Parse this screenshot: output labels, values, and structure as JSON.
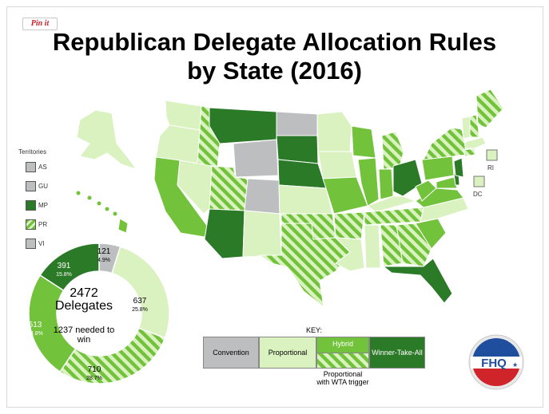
{
  "pin_label": "Pin it",
  "title_line1": "Republican Delegate Allocation Rules",
  "title_line2": "by State (2016)",
  "colors": {
    "convention": "#bcbec0",
    "proportional": "#d9f2c0",
    "hybrid": "#72c23c",
    "wta": "#2b7a28",
    "trigger_base": "#d9f2c0",
    "trigger_stripe": "#72c23c"
  },
  "territories": {
    "label": "Territories",
    "items": [
      {
        "code": "AS",
        "rule": "convention"
      },
      {
        "code": "GU",
        "rule": "convention"
      },
      {
        "code": "MP",
        "rule": "wta"
      },
      {
        "code": "PR",
        "rule": "trigger"
      },
      {
        "code": "VI",
        "rule": "convention"
      }
    ]
  },
  "small_state_labels": {
    "ri": "RI",
    "dc": "DC"
  },
  "key": {
    "label": "KEY:",
    "convention": "Convention",
    "proportional": "Proportional",
    "hybrid": "Hybrid",
    "wta": "Winner-Take-All",
    "trigger": "Proportional with WTA trigger"
  },
  "chart_data": {
    "type": "pie",
    "total_label": "2472",
    "total_sublabel": "Delegates",
    "needed_label": "1237 needed to win",
    "slices": [
      {
        "category": "Convention",
        "value": 121,
        "percent": "4.9%",
        "color": "#bcbec0"
      },
      {
        "category": "Proportional",
        "value": 637,
        "percent": "25.8%",
        "color": "#d9f2c0"
      },
      {
        "category": "Proportional with WTA trigger",
        "value": 710,
        "percent": "28.7%",
        "color": "striped"
      },
      {
        "category": "Hybrid",
        "value": 613,
        "percent": "24.8%",
        "color": "#72c23c"
      },
      {
        "category": "Winner-Take-All",
        "value": 391,
        "percent": "15.8%",
        "color": "#2b7a28"
      }
    ]
  },
  "logo_text": "FHQ"
}
